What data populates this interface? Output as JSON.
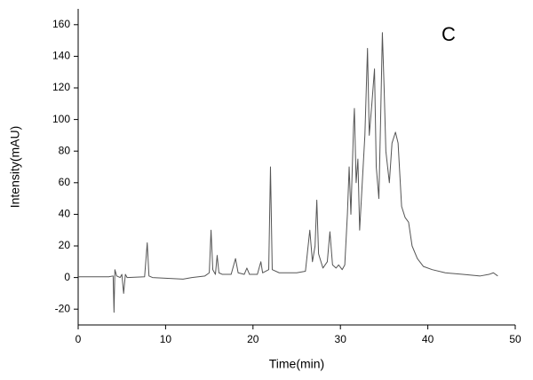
{
  "chart_data": {
    "type": "line",
    "annotation": "C",
    "x_label": "Time(min)",
    "y_label": "Intensity(mAU)",
    "xlim": [
      0,
      50
    ],
    "ylim": [
      -30,
      170
    ],
    "xticks": [
      0,
      10,
      20,
      30,
      40,
      50
    ],
    "yticks": [
      -20,
      0,
      20,
      40,
      60,
      80,
      100,
      120,
      140,
      160
    ],
    "series": [
      {
        "color": "#555555",
        "x": [
          0,
          3.5,
          4.0,
          4.1,
          4.2,
          4.4,
          4.8,
          5.0,
          5.2,
          5.4,
          5.6,
          7.6,
          7.9,
          8.1,
          8.5,
          12,
          13,
          14.5,
          15,
          15.2,
          15.4,
          15.7,
          15.9,
          16.1,
          16.5,
          17.5,
          18,
          18.3,
          19,
          19.3,
          19.6,
          20.5,
          20.9,
          21.1,
          21.8,
          22.0,
          22.2,
          23,
          25,
          26,
          26.5,
          26.8,
          27.1,
          27.3,
          27.5,
          28,
          28.5,
          28.8,
          29.1,
          29.5,
          29.8,
          30.2,
          30.5,
          30.8,
          31.0,
          31.2,
          31.5,
          31.6,
          31.8,
          32,
          32.2,
          32.5,
          32.8,
          33.1,
          33.3,
          33.6,
          33.9,
          34.1,
          34.4,
          34.6,
          34.8,
          35.0,
          35.2,
          35.6,
          35.9,
          36.3,
          36.6,
          37,
          37.4,
          37.8,
          38.2,
          38.8,
          39.5,
          40.5,
          42,
          44,
          46,
          47,
          47.5,
          48
        ],
        "values": [
          0.5,
          0.5,
          1,
          -22,
          5,
          1,
          0,
          2,
          -10,
          2,
          0,
          0.5,
          22,
          1,
          0,
          -1,
          0,
          1,
          3,
          30,
          5,
          2,
          14,
          3,
          2,
          2,
          12,
          3,
          2,
          6,
          2,
          2,
          10,
          3,
          5,
          70,
          5,
          3,
          3,
          4,
          30,
          10,
          20,
          49,
          15,
          6,
          10,
          29,
          8,
          6,
          8,
          5,
          8,
          40,
          70,
          40,
          95,
          107,
          60,
          75,
          30,
          60,
          90,
          145,
          90,
          110,
          132,
          70,
          50,
          100,
          155,
          120,
          80,
          60,
          85,
          92,
          85,
          45,
          38,
          35,
          20,
          12,
          7,
          5,
          3,
          2,
          1,
          2,
          3,
          1
        ]
      }
    ]
  }
}
